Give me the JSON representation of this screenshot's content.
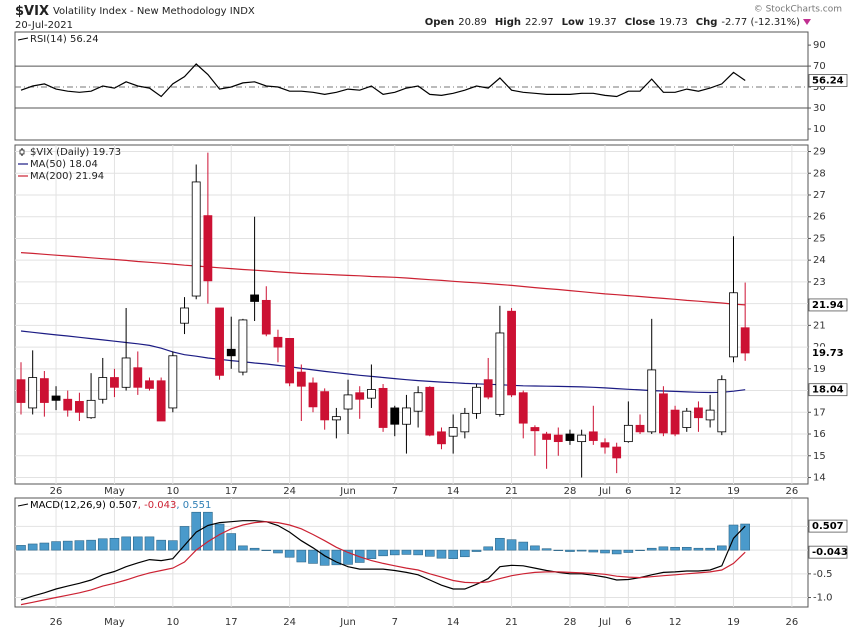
{
  "header": {
    "symbol": "$VIX",
    "name": "Volatility Index - New Methodology INDX",
    "date": "20-Jul-2021",
    "quote": [
      {
        "label": "Open",
        "value": "20.89"
      },
      {
        "label": "High",
        "value": "22.97"
      },
      {
        "label": "Low",
        "value": "19.37"
      },
      {
        "label": "Close",
        "value": "19.73"
      },
      {
        "label": "Chg",
        "value": "-2.77 (-12.31%)"
      }
    ],
    "copyright": "© StockCharts.com"
  },
  "chart_data": [
    {
      "type": "line",
      "series": [
        {
          "name": "RSI(14) 56.24",
          "color": "#000000",
          "values": [
            47,
            51,
            53,
            48,
            46,
            45,
            46,
            51,
            49,
            55,
            51,
            49,
            41,
            53,
            60,
            72,
            62,
            48,
            50,
            54,
            55,
            51,
            50,
            46,
            46,
            45,
            43,
            45,
            48,
            47,
            51,
            43,
            45,
            49,
            51,
            43,
            42,
            44,
            47,
            51,
            49,
            58.6,
            47,
            45,
            44,
            43,
            43,
            43,
            44,
            44,
            42,
            41,
            46,
            46,
            57.6,
            45,
            45,
            48,
            46,
            49,
            53,
            64,
            56.24,
            null,
            null,
            null,
            null
          ]
        }
      ],
      "ylim": [
        -0.5,
        102.5
      ],
      "yticks": [
        10,
        30,
        50,
        70,
        90
      ],
      "levels": [
        {
          "value": 70,
          "style": "solid"
        },
        {
          "value": 50,
          "style": "dashdot"
        },
        {
          "value": 30,
          "style": "solid"
        }
      ],
      "grid": false
    },
    {
      "type": "candlestick",
      "categories": [
        null,
        null,
        null,
        "26",
        null,
        null,
        null,
        null,
        "May",
        null,
        null,
        null,
        null,
        "10",
        null,
        null,
        null,
        null,
        "17",
        null,
        null,
        null,
        null,
        "24",
        null,
        null,
        null,
        null,
        "Jun",
        null,
        null,
        null,
        "7",
        null,
        null,
        null,
        null,
        "14",
        null,
        null,
        null,
        null,
        "21",
        null,
        null,
        null,
        null,
        "28",
        null,
        null,
        "Jul",
        null,
        "6",
        null,
        null,
        null,
        "12",
        null,
        null,
        null,
        null,
        "19",
        null,
        null,
        null,
        null,
        "26"
      ],
      "candles": {
        "name": "$VIX (Daily) 19.73",
        "up_color": "#000000",
        "down_color": "#cc1133",
        "open": [
          18.5,
          17.2,
          18.55,
          17.75,
          17.6,
          17.5,
          16.75,
          17.6,
          18.6,
          18.15,
          19.05,
          18.45,
          18.45,
          17.2,
          21.1,
          22.35,
          26.05,
          21.8,
          19.9,
          18.85,
          22.4,
          22.15,
          20.45,
          20.4,
          18.85,
          18.35,
          17.95,
          16.65,
          17.15,
          17.9,
          17.65,
          18.1,
          17.2,
          16.45,
          17.05,
          18.15,
          16.1,
          15.9,
          16.1,
          16.95,
          18.5,
          16.9,
          21.65,
          17.9,
          16.3,
          16.0,
          15.95,
          16.0,
          15.65,
          16.1,
          15.6,
          15.4,
          15.65,
          16.4,
          16.1,
          17.85,
          17.1,
          16.3,
          17.2,
          16.65,
          16.1,
          19.55,
          20.89,
          null,
          null,
          null,
          null
        ],
        "high": [
          19.3,
          19.85,
          18.9,
          18.2,
          18.0,
          17.9,
          18.8,
          19.5,
          19.0,
          21.8,
          19.8,
          18.6,
          18.6,
          19.8,
          22.3,
          28.4,
          28.95,
          21.8,
          21.4,
          21.3,
          26.0,
          22.8,
          20.8,
          20.4,
          19.2,
          18.6,
          18.1,
          17.2,
          18.5,
          18.2,
          19.2,
          18.3,
          17.3,
          17.8,
          18.2,
          18.2,
          16.3,
          16.9,
          17.2,
          18.3,
          19.5,
          21.9,
          21.8,
          18.0,
          16.4,
          16.1,
          16.3,
          16.2,
          16.2,
          17.3,
          15.8,
          15.6,
          17.5,
          16.9,
          21.3,
          18.2,
          17.3,
          17.2,
          17.5,
          17.8,
          18.7,
          25.1,
          22.97,
          null,
          null,
          null,
          null
        ],
        "low": [
          16.9,
          16.9,
          16.8,
          17.1,
          16.8,
          16.6,
          16.7,
          17.4,
          17.7,
          18.0,
          17.8,
          18.0,
          16.6,
          17.0,
          20.6,
          22.2,
          22.0,
          18.5,
          19.0,
          18.7,
          21.2,
          20.5,
          19.3,
          18.2,
          16.6,
          17.0,
          16.2,
          15.8,
          16.0,
          16.7,
          17.2,
          16.1,
          15.9,
          15.1,
          16.3,
          15.9,
          15.3,
          15.1,
          15.8,
          16.7,
          17.6,
          16.8,
          17.7,
          15.8,
          15.0,
          14.4,
          15.0,
          15.5,
          14.0,
          15.5,
          15.1,
          14.2,
          15.6,
          16.0,
          16.0,
          15.9,
          15.9,
          16.1,
          16.1,
          16.3,
          15.95,
          19.3,
          19.37,
          null,
          null,
          null,
          null
        ],
        "close": [
          17.45,
          18.6,
          17.45,
          17.55,
          17.1,
          17.0,
          17.55,
          18.6,
          18.15,
          19.5,
          18.15,
          18.1,
          16.6,
          19.6,
          21.8,
          27.6,
          23.05,
          18.7,
          19.6,
          21.25,
          22.1,
          20.6,
          20.0,
          18.35,
          18.2,
          17.25,
          16.65,
          16.8,
          17.8,
          17.6,
          18.05,
          16.3,
          16.45,
          17.2,
          17.9,
          15.95,
          15.55,
          16.3,
          16.95,
          18.15,
          17.7,
          20.65,
          17.8,
          16.5,
          16.15,
          15.75,
          15.65,
          15.7,
          15.95,
          15.7,
          15.4,
          14.9,
          16.4,
          16.1,
          18.95,
          16.05,
          16.0,
          17.05,
          16.75,
          17.1,
          18.5,
          22.5,
          19.73,
          null,
          null,
          null,
          null
        ]
      },
      "series": [
        {
          "name": "MA(50) 18.04",
          "color": "#1c1c84",
          "values": [
            20.74,
            20.68,
            20.62,
            20.56,
            20.51,
            20.45,
            20.39,
            20.33,
            20.27,
            20.21,
            20.15,
            20.08,
            19.95,
            19.78,
            19.65,
            19.58,
            19.5,
            19.44,
            19.38,
            19.33,
            19.27,
            19.22,
            19.16,
            19.1,
            19.02,
            18.95,
            18.88,
            18.82,
            18.76,
            18.7,
            18.65,
            18.6,
            18.55,
            18.5,
            18.46,
            18.42,
            18.39,
            18.36,
            18.33,
            18.31,
            18.29,
            18.27,
            18.24,
            18.22,
            18.21,
            18.2,
            18.19,
            18.18,
            18.17,
            18.15,
            18.12,
            18.09,
            18.06,
            18.03,
            18.0,
            17.98,
            17.96,
            17.94,
            17.92,
            17.91,
            17.92,
            17.97,
            18.04,
            null,
            null,
            null,
            null
          ]
        },
        {
          "name": "MA(200) 21.94",
          "color": "#cc2233",
          "values": [
            24.35,
            24.31,
            24.27,
            24.23,
            24.19,
            24.15,
            24.11,
            24.07,
            24.03,
            23.99,
            23.94,
            23.9,
            23.86,
            23.82,
            23.77,
            23.73,
            23.69,
            23.65,
            23.61,
            23.57,
            23.54,
            23.5,
            23.46,
            23.43,
            23.39,
            23.37,
            23.35,
            23.32,
            23.3,
            23.28,
            23.25,
            23.23,
            23.21,
            23.18,
            23.14,
            23.1,
            23.07,
            23.03,
            22.99,
            22.96,
            22.92,
            22.88,
            22.84,
            22.79,
            22.74,
            22.69,
            22.65,
            22.6,
            22.55,
            22.5,
            22.45,
            22.41,
            22.37,
            22.33,
            22.28,
            22.24,
            22.2,
            22.15,
            22.11,
            22.07,
            22.03,
            21.98,
            21.94,
            null,
            null,
            null,
            null
          ]
        }
      ],
      "ylim": [
        13.7,
        29.3
      ],
      "yticks": [
        14,
        15,
        16,
        17,
        18,
        19,
        20,
        21,
        22,
        23,
        24,
        25,
        26,
        27,
        28,
        29
      ],
      "grid": true
    },
    {
      "type": "macd",
      "categories": [
        null,
        null,
        null,
        "26",
        null,
        null,
        null,
        null,
        "May",
        null,
        null,
        null,
        null,
        "10",
        null,
        null,
        null,
        null,
        "17",
        null,
        null,
        null,
        null,
        "24",
        null,
        null,
        null,
        null,
        "Jun",
        null,
        null,
        null,
        "7",
        null,
        null,
        null,
        null,
        "14",
        null,
        null,
        null,
        null,
        "21",
        null,
        null,
        null,
        null,
        "28",
        null,
        null,
        "Jul",
        null,
        "6",
        null,
        null,
        null,
        "12",
        null,
        null,
        null,
        null,
        "19",
        null,
        null,
        null,
        null,
        "26"
      ],
      "series": [
        {
          "name": "MACD(12,26,9) 0.507",
          "color": "#000000",
          "kind": "line",
          "values": [
            -1.05,
            -0.97,
            -0.9,
            -0.82,
            -0.76,
            -0.7,
            -0.63,
            -0.52,
            -0.45,
            -0.35,
            -0.27,
            -0.2,
            -0.22,
            -0.18,
            0.1,
            0.38,
            0.52,
            0.58,
            0.6,
            0.62,
            0.62,
            0.6,
            0.52,
            0.38,
            0.2,
            0.05,
            -0.12,
            -0.25,
            -0.35,
            -0.4,
            -0.4,
            -0.4,
            -0.43,
            -0.47,
            -0.52,
            -0.63,
            -0.74,
            -0.82,
            -0.82,
            -0.72,
            -0.6,
            -0.35,
            -0.32,
            -0.33,
            -0.38,
            -0.43,
            -0.47,
            -0.5,
            -0.5,
            -0.53,
            -0.57,
            -0.63,
            -0.62,
            -0.58,
            -0.52,
            -0.47,
            -0.46,
            -0.44,
            -0.44,
            -0.42,
            -0.33,
            0.25,
            0.507,
            null,
            null,
            null,
            null
          ]
        },
        {
          "name": ", -0.043",
          "color": "#cc2233",
          "kind": "line",
          "values": [
            -1.15,
            -1.1,
            -1.05,
            -1.0,
            -0.95,
            -0.9,
            -0.84,
            -0.76,
            -0.7,
            -0.63,
            -0.55,
            -0.48,
            -0.43,
            -0.38,
            -0.25,
            0.0,
            0.18,
            0.33,
            0.45,
            0.53,
            0.58,
            0.6,
            0.58,
            0.53,
            0.45,
            0.33,
            0.2,
            0.06,
            -0.05,
            -0.14,
            -0.22,
            -0.28,
            -0.33,
            -0.38,
            -0.42,
            -0.5,
            -0.57,
            -0.64,
            -0.68,
            -0.69,
            -0.67,
            -0.6,
            -0.54,
            -0.5,
            -0.47,
            -0.46,
            -0.46,
            -0.47,
            -0.48,
            -0.49,
            -0.51,
            -0.55,
            -0.57,
            -0.58,
            -0.56,
            -0.54,
            -0.52,
            -0.5,
            -0.48,
            -0.46,
            -0.42,
            -0.28,
            -0.043,
            null,
            null,
            null,
            null
          ]
        },
        {
          "name": ", 0.551",
          "color": "#4a9acb",
          "kind": "bar",
          "values": [
            0.1,
            0.13,
            0.15,
            0.18,
            0.19,
            0.2,
            0.21,
            0.24,
            0.25,
            0.28,
            0.28,
            0.28,
            0.21,
            0.2,
            0.5,
            0.8,
            0.8,
            0.55,
            0.35,
            0.09,
            0.04,
            0.0,
            -0.06,
            -0.15,
            -0.25,
            -0.28,
            -0.32,
            -0.31,
            -0.3,
            -0.26,
            -0.18,
            -0.12,
            -0.1,
            -0.09,
            -0.1,
            -0.13,
            -0.17,
            -0.18,
            -0.14,
            -0.03,
            0.07,
            0.25,
            0.22,
            0.17,
            0.09,
            0.03,
            -0.01,
            -0.03,
            -0.02,
            -0.04,
            -0.06,
            -0.08,
            -0.05,
            0.0,
            0.04,
            0.07,
            0.06,
            0.06,
            0.04,
            0.04,
            0.09,
            0.53,
            0.551,
            null,
            null,
            null,
            null
          ]
        }
      ],
      "ylim": [
        -1.2,
        1.1
      ],
      "yticks": [
        0.5,
        0,
        -0.5,
        {
          "value": -1,
          "label": "-1.0"
        }
      ],
      "grid": true
    }
  ]
}
